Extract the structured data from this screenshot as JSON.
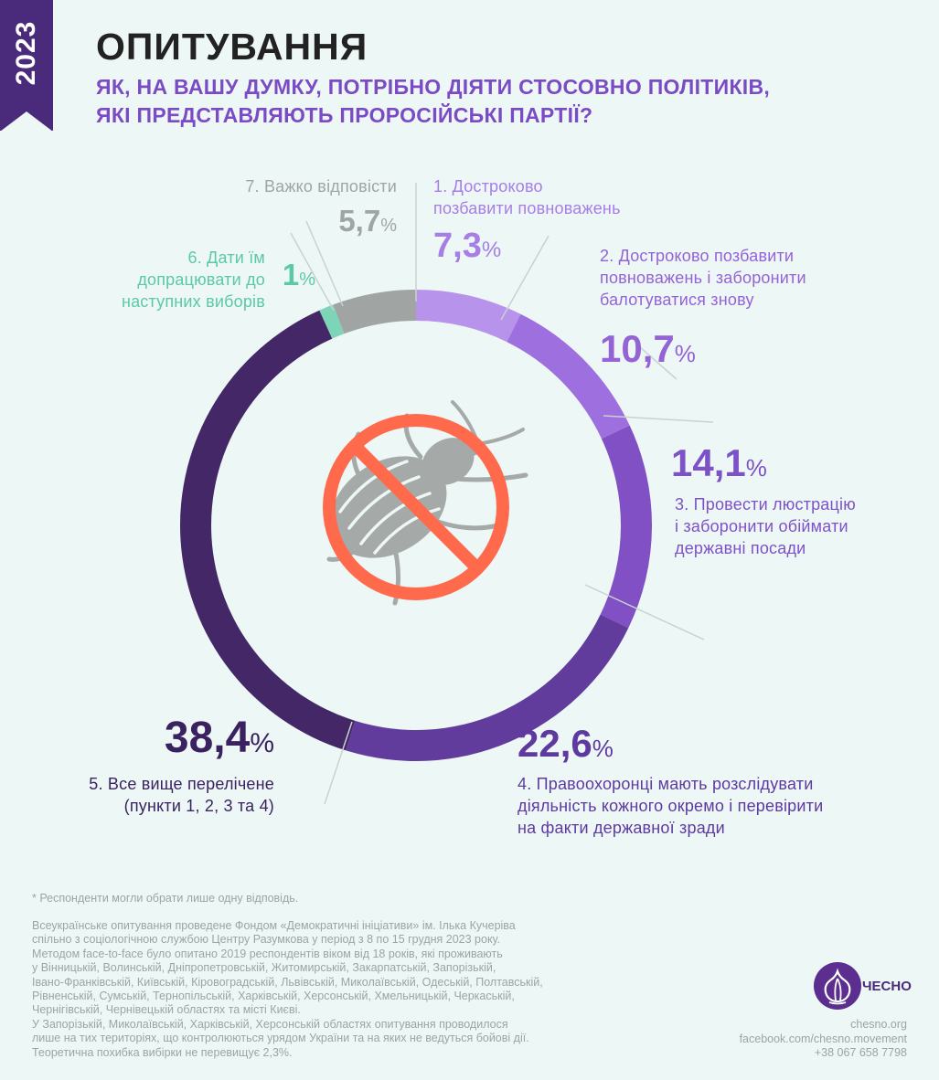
{
  "year": "2023",
  "title": "ОПИТУВАННЯ",
  "question_lines": [
    "ЯК, НА ВАШУ ДУМКУ, ПОТРІБНО ДІЯТИ СТОСОВНО ПОЛІТИКІВ,",
    "ЯКІ ПРЕДСТАВЛЯЮТЬ ПРОРОСІЙСЬКІ ПАРТІЇ?"
  ],
  "colors": {
    "accent": "#7a4bc4",
    "dark": "#4a2a7a",
    "green": "#5bc8a6",
    "grey": "#a0a5a4",
    "forbidden": "#ff6a4d",
    "beetle": "#a5aaa9"
  },
  "chart_data": {
    "type": "pie",
    "style": "donut",
    "center_icon": "crossed-out-colorado-beetle-icon",
    "categories": [
      "1. Достроково позбавити повноважень",
      "2. Достроково позбавити повноважень і заборонити балотуватися знову",
      "3. Провести люстрацію і заборонити обіймати державні посади",
      "4. Правоохоронці мають розслідувати діяльність кожного окремо і перевірити на факти державної зради",
      "5. Все вище перелічене (пункти 1, 2, 3 та 4)",
      "6. Дати їм допрацювати до наступних виборів",
      "7. Важко відповісти"
    ],
    "values": [
      7.3,
      10.7,
      14.1,
      22.6,
      38.4,
      1.0,
      5.7
    ],
    "value_labels": [
      "7,3",
      "10,7",
      "14,1",
      "22,6",
      "38,4",
      "1",
      "5,7"
    ],
    "percent_sign": "%",
    "slice_colors": [
      "#b793ec",
      "#9e6fde",
      "#8050c4",
      "#623c9c",
      "#432766",
      "#7dd4b6",
      "#a0a5a4"
    ],
    "label_colors": [
      "#a77ee6",
      "#9463d6",
      "#7e52c7",
      "#5e3aa0",
      "#3a2260",
      "#5bc8a6",
      "#a0a5a4"
    ],
    "label_lines": [
      [
        "1. Достроково",
        "позбавити повноважень"
      ],
      [
        "2. Достроково позбавити",
        "повноважень і заборонити",
        "балотуватися знову"
      ],
      [
        "3. Провести люстрацію",
        "і заборонити обіймати",
        "державні посади"
      ],
      [
        "4. Правоохоронці мають розслідувати",
        "діяльність кожного окремо і перевірити",
        "на факти державної зради"
      ],
      [
        "5. Все вище перелічене",
        "(пункти 1, 2, 3 та 4)"
      ],
      [
        "6. Дати їм",
        "допрацювати до",
        "наступних виборів"
      ],
      [
        "7.  Важко відповісти"
      ]
    ]
  },
  "footnote": "* Респонденти могли обрати лише одну відповідь.",
  "methodology_lines": [
    "Всеукраїнське опитування проведене Фондом «Демократичні ініціативи» ім. Ілька Кучеріва",
    "спільно з соціологічною службою Центру Разумкова у період з 8 по 15 грудня 2023 року.",
    "Методом face-to-face було опитано 2019 респондентів віком від 18 років, які проживають",
    "у Вінницькій, Волинській, Дніпропетровській, Житомирській, Закарпатській, Запорізькій,",
    "Івано-Франківській, Київській, Кіровоградській, Львівській, Миколаївській, Одеській, Полтавській,",
    "Рівненській, Сумській, Тернопільській, Харківській, Херсонській, Хмельницькій, Черкаській,",
    "Чернігівській, Чернівецькій областях та місті Києві.",
    "У Запорізькій, Миколаївській, Харківській, Херсонській областях опитування проводилося",
    "лише на тих територіях, що контролюються урядом України та на яких не ведуться бойові дії.",
    "Теоретична похибка вибірки не перевищує 2,3%."
  ],
  "logo": {
    "text": "ЧЕСНО",
    "icon": "garlic-logo-icon"
  },
  "contacts": [
    "chesno.org",
    "facebook.com/chesno.movement",
    "+38 067 658 7798"
  ]
}
